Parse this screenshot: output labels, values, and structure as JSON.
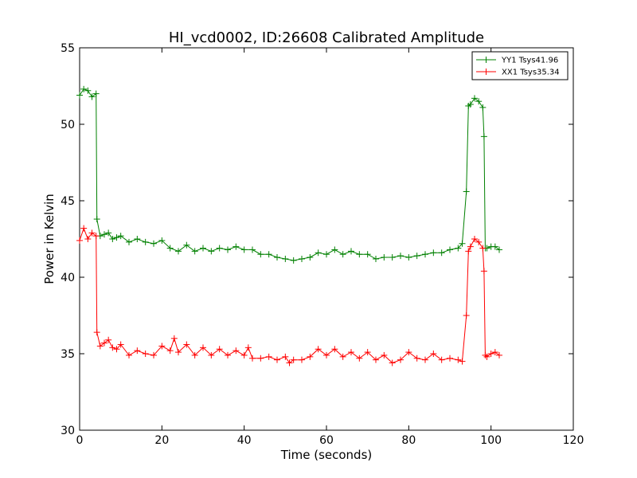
{
  "chart_data": {
    "type": "line",
    "title": "HI_vcd0002, ID:26608 Calibrated Amplitude",
    "xlabel": "Time (seconds)",
    "ylabel": "Power in Kelvin",
    "xlim": [
      0,
      120
    ],
    "ylim": [
      30,
      55
    ],
    "xticks": [
      0,
      20,
      40,
      60,
      80,
      100,
      120
    ],
    "yticks": [
      30,
      35,
      40,
      45,
      50,
      55
    ],
    "grid": false,
    "legend": "top-right",
    "marker": "+",
    "series": [
      {
        "name": "YY1 Tsys41.96",
        "color": "#008000",
        "points": [
          [
            0,
            51.9
          ],
          [
            1,
            52.3
          ],
          [
            2,
            52.2
          ],
          [
            3,
            51.8
          ],
          [
            4,
            52.0
          ],
          [
            4.2,
            43.8
          ],
          [
            5,
            42.7
          ],
          [
            6,
            42.8
          ],
          [
            7,
            42.9
          ],
          [
            8,
            42.5
          ],
          [
            9,
            42.6
          ],
          [
            10,
            42.7
          ],
          [
            12,
            42.3
          ],
          [
            14,
            42.5
          ],
          [
            16,
            42.3
          ],
          [
            18,
            42.2
          ],
          [
            20,
            42.4
          ],
          [
            22,
            41.9
          ],
          [
            24,
            41.7
          ],
          [
            26,
            42.1
          ],
          [
            28,
            41.7
          ],
          [
            30,
            41.9
          ],
          [
            32,
            41.7
          ],
          [
            34,
            41.9
          ],
          [
            36,
            41.8
          ],
          [
            38,
            42.0
          ],
          [
            40,
            41.8
          ],
          [
            42,
            41.8
          ],
          [
            44,
            41.5
          ],
          [
            46,
            41.5
          ],
          [
            48,
            41.3
          ],
          [
            50,
            41.2
          ],
          [
            52,
            41.1
          ],
          [
            54,
            41.2
          ],
          [
            56,
            41.3
          ],
          [
            58,
            41.6
          ],
          [
            60,
            41.5
          ],
          [
            62,
            41.8
          ],
          [
            64,
            41.5
          ],
          [
            66,
            41.7
          ],
          [
            68,
            41.5
          ],
          [
            70,
            41.5
          ],
          [
            72,
            41.2
          ],
          [
            74,
            41.3
          ],
          [
            76,
            41.3
          ],
          [
            78,
            41.4
          ],
          [
            80,
            41.3
          ],
          [
            82,
            41.4
          ],
          [
            84,
            41.5
          ],
          [
            86,
            41.6
          ],
          [
            88,
            41.6
          ],
          [
            90,
            41.8
          ],
          [
            92,
            41.9
          ],
          [
            93,
            42.2
          ],
          [
            94,
            45.6
          ],
          [
            94.5,
            51.2
          ],
          [
            95,
            51.3
          ],
          [
            96,
            51.7
          ],
          [
            97,
            51.5
          ],
          [
            98,
            51.1
          ],
          [
            98.3,
            49.2
          ],
          [
            98.6,
            41.9
          ],
          [
            99,
            41.9
          ],
          [
            100,
            42.0
          ],
          [
            101,
            42.0
          ],
          [
            102,
            41.8
          ]
        ]
      },
      {
        "name": "XX1 Tsys35.34",
        "color": "#ff0000",
        "points": [
          [
            0,
            42.4
          ],
          [
            1,
            43.2
          ],
          [
            2,
            42.5
          ],
          [
            3,
            42.9
          ],
          [
            4,
            42.7
          ],
          [
            4.2,
            36.4
          ],
          [
            5,
            35.5
          ],
          [
            6,
            35.7
          ],
          [
            7,
            35.9
          ],
          [
            8,
            35.4
          ],
          [
            9,
            35.3
          ],
          [
            10,
            35.6
          ],
          [
            12,
            34.9
          ],
          [
            14,
            35.2
          ],
          [
            16,
            35.0
          ],
          [
            18,
            34.9
          ],
          [
            20,
            35.5
          ],
          [
            22,
            35.2
          ],
          [
            23,
            36.0
          ],
          [
            24,
            35.1
          ],
          [
            26,
            35.6
          ],
          [
            28,
            34.9
          ],
          [
            30,
            35.4
          ],
          [
            32,
            34.9
          ],
          [
            34,
            35.3
          ],
          [
            36,
            34.9
          ],
          [
            38,
            35.2
          ],
          [
            40,
            34.9
          ],
          [
            41,
            35.4
          ],
          [
            42,
            34.7
          ],
          [
            44,
            34.7
          ],
          [
            46,
            34.8
          ],
          [
            48,
            34.6
          ],
          [
            50,
            34.8
          ],
          [
            51,
            34.4
          ],
          [
            52,
            34.6
          ],
          [
            54,
            34.6
          ],
          [
            56,
            34.8
          ],
          [
            58,
            35.3
          ],
          [
            60,
            34.9
          ],
          [
            62,
            35.3
          ],
          [
            64,
            34.8
          ],
          [
            66,
            35.1
          ],
          [
            68,
            34.7
          ],
          [
            70,
            35.1
          ],
          [
            72,
            34.6
          ],
          [
            74,
            34.9
          ],
          [
            76,
            34.4
          ],
          [
            78,
            34.6
          ],
          [
            80,
            35.1
          ],
          [
            82,
            34.7
          ],
          [
            84,
            34.6
          ],
          [
            86,
            35.0
          ],
          [
            88,
            34.6
          ],
          [
            90,
            34.7
          ],
          [
            92,
            34.6
          ],
          [
            93,
            34.5
          ],
          [
            94,
            37.5
          ],
          [
            94.5,
            41.7
          ],
          [
            95,
            42.0
          ],
          [
            96,
            42.5
          ],
          [
            97,
            42.3
          ],
          [
            98,
            41.9
          ],
          [
            98.3,
            40.4
          ],
          [
            98.6,
            34.9
          ],
          [
            99,
            34.8
          ],
          [
            100,
            35.0
          ],
          [
            101,
            35.1
          ],
          [
            102,
            34.9
          ]
        ]
      }
    ]
  }
}
